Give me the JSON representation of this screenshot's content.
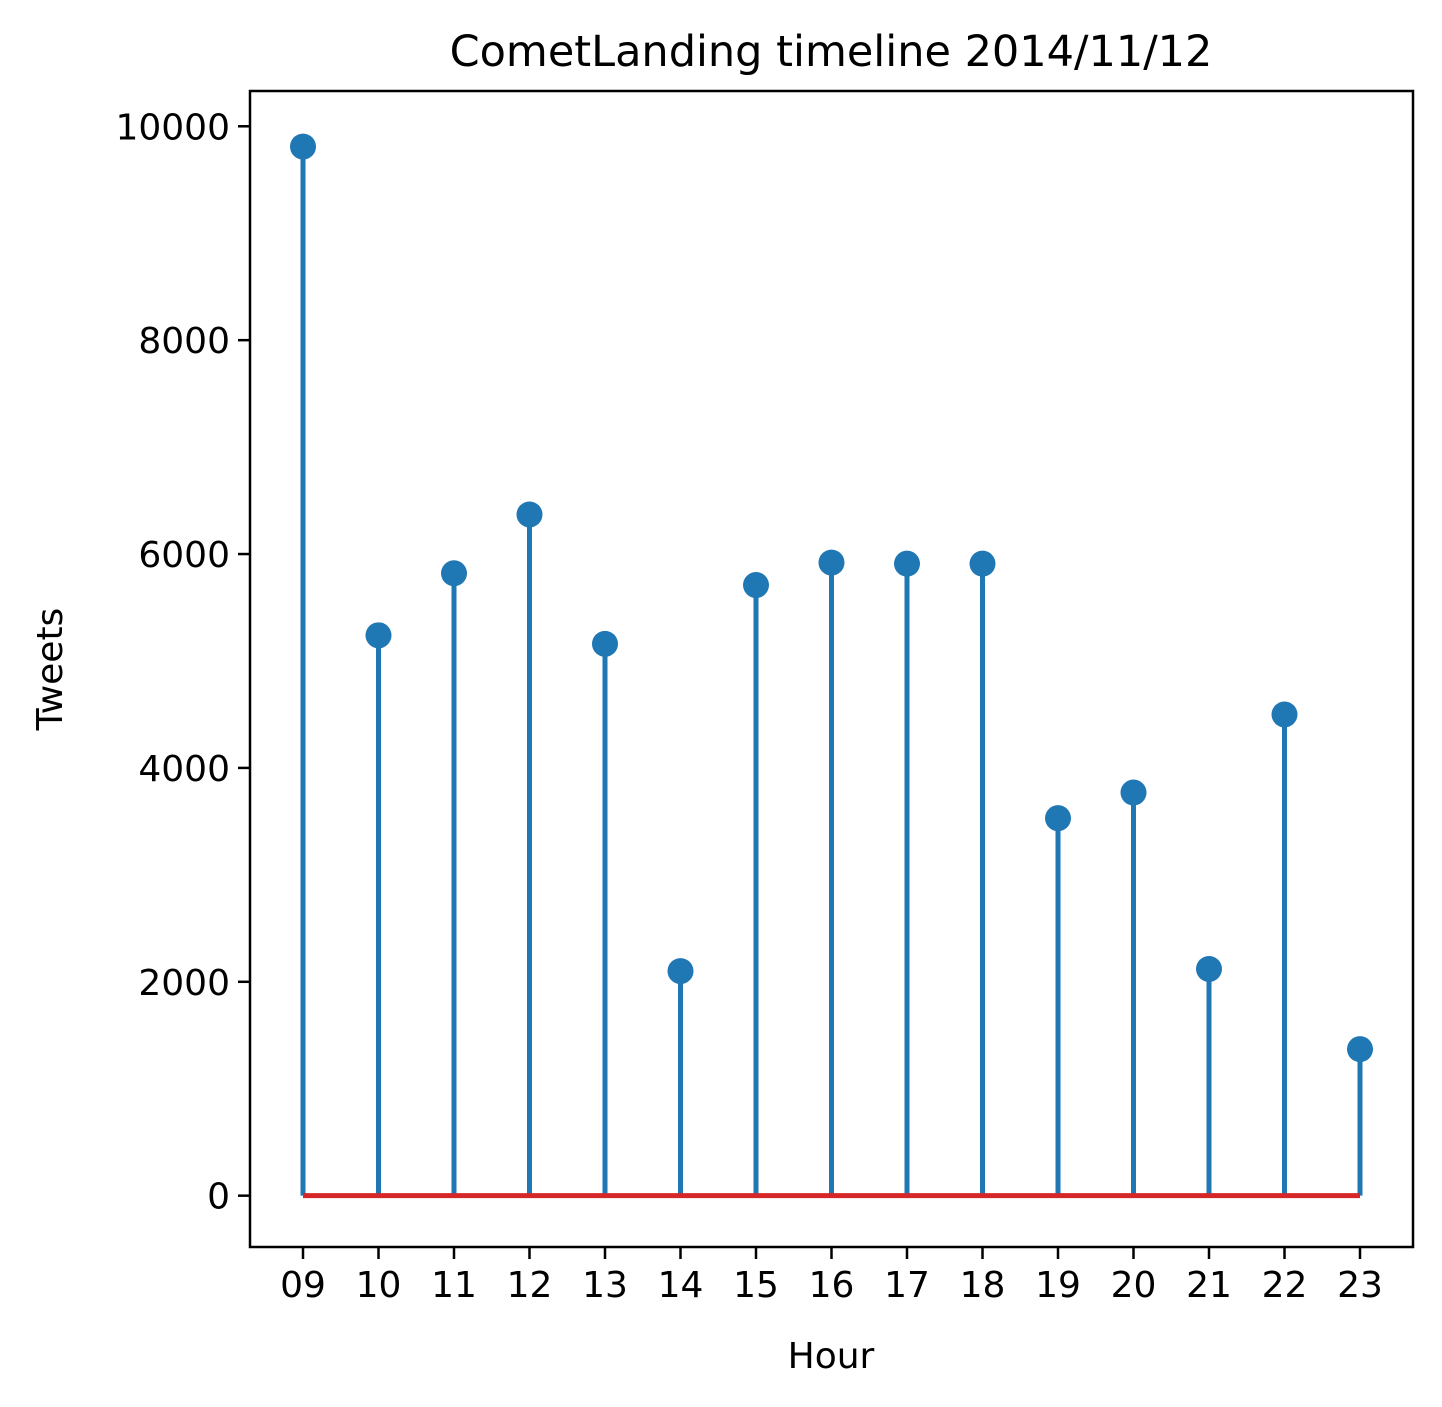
{
  "chart_data": {
    "type": "stem",
    "title": "CometLanding timeline 2014/11/12",
    "xlabel": "Hour",
    "ylabel": "Tweets",
    "categories": [
      "09",
      "10",
      "11",
      "12",
      "13",
      "14",
      "15",
      "16",
      "17",
      "18",
      "19",
      "20",
      "21",
      "22",
      "23"
    ],
    "values": [
      9810,
      5240,
      5820,
      6370,
      5160,
      2100,
      5710,
      5920,
      5910,
      5910,
      3530,
      3770,
      2120,
      4500,
      1370
    ],
    "yticks": [
      0,
      2000,
      4000,
      6000,
      8000,
      10000
    ],
    "ylim": [
      -480,
      10330
    ],
    "grid": false,
    "legend": "none",
    "colors": {
      "stem": "#1f77b4",
      "marker": "#1f77b4",
      "baseline": "#d62728"
    }
  }
}
